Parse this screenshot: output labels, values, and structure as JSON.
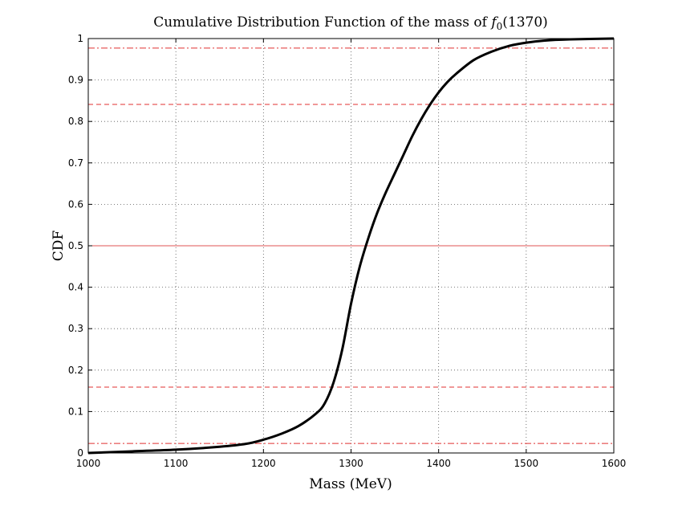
{
  "chart_data": {
    "type": "line",
    "title_main": "Cumulative Distribution Function of the mass of ",
    "title_symbol": "f",
    "title_subscript": "0",
    "title_tail": "(1370)",
    "xlabel": "Mass (MeV)",
    "ylabel": "CDF",
    "xlim": [
      1000,
      1600
    ],
    "ylim": [
      0,
      1
    ],
    "grid": true,
    "x_ticks": [
      1000,
      1100,
      1200,
      1300,
      1400,
      1500,
      1600
    ],
    "x_tick_labels": [
      "1000",
      "1100",
      "1200",
      "1300",
      "1400",
      "1500",
      "1600"
    ],
    "y_ticks": [
      0,
      0.1,
      0.2,
      0.3,
      0.4,
      0.5,
      0.6,
      0.7,
      0.8,
      0.9,
      1
    ],
    "y_tick_labels": [
      "0",
      "0.1",
      "0.2",
      "0.3",
      "0.4",
      "0.5",
      "0.6",
      "0.7",
      "0.8",
      "0.9",
      "1"
    ],
    "series": [
      {
        "name": "CDF",
        "color": "#000000",
        "x": [
          1000,
          1050,
          1100,
          1150,
          1180,
          1200,
          1220,
          1240,
          1260,
          1270,
          1280,
          1290,
          1300,
          1310,
          1320,
          1330,
          1340,
          1350,
          1360,
          1370,
          1380,
          1390,
          1400,
          1410,
          1420,
          1440,
          1460,
          1480,
          1500,
          1520,
          1550,
          1600
        ],
        "y": [
          0.0,
          0.004,
          0.008,
          0.015,
          0.022,
          0.032,
          0.046,
          0.065,
          0.095,
          0.12,
          0.17,
          0.25,
          0.36,
          0.45,
          0.52,
          0.58,
          0.63,
          0.675,
          0.72,
          0.765,
          0.805,
          0.84,
          0.87,
          0.895,
          0.915,
          0.948,
          0.968,
          0.982,
          0.99,
          0.995,
          0.998,
          1.0
        ]
      }
    ],
    "reference_lines": [
      {
        "y": 0.5,
        "style": "solid",
        "color": "#e05555"
      },
      {
        "y": 0.159,
        "style": "dashed",
        "color": "#e03030"
      },
      {
        "y": 0.841,
        "style": "dashed",
        "color": "#e03030"
      },
      {
        "y": 0.023,
        "style": "dashdot",
        "color": "#e03030"
      },
      {
        "y": 0.977,
        "style": "dashdot",
        "color": "#e03030"
      }
    ]
  }
}
